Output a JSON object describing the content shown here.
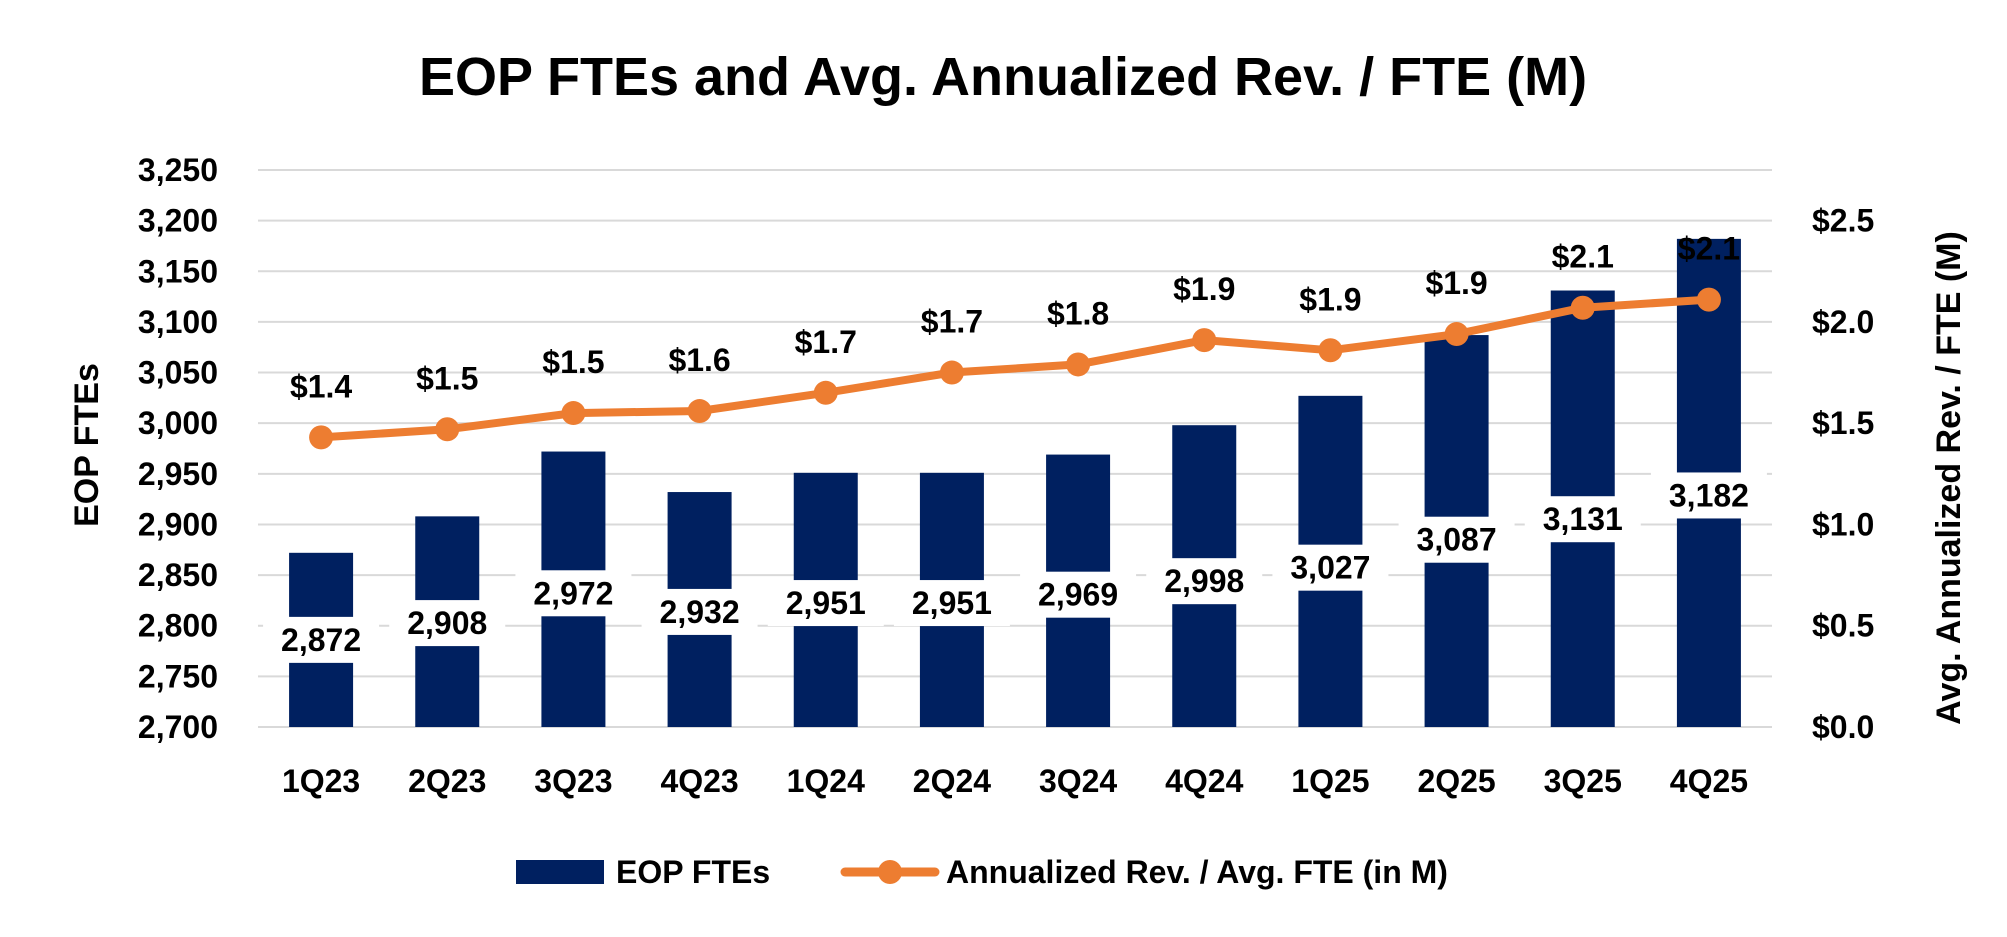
{
  "chart_data": {
    "type": "bar+line",
    "title": "EOP FTEs and Avg. Annualized Rev. / FTE (M)",
    "categories": [
      "1Q23",
      "2Q23",
      "3Q23",
      "4Q23",
      "1Q24",
      "2Q24",
      "3Q24",
      "4Q24",
      "1Q25",
      "2Q25",
      "3Q25",
      "4Q25"
    ],
    "series": [
      {
        "name": "EOP FTEs",
        "type": "bar",
        "axis": "left",
        "color": "#002060",
        "values": [
          2872,
          2908,
          2972,
          2932,
          2951,
          2951,
          2969,
          2998,
          3027,
          3087,
          3131,
          3182
        ],
        "labels": [
          "2,872",
          "2,908",
          "2,972",
          "2,932",
          "2,951",
          "2,951",
          "2,969",
          "2,998",
          "3,027",
          "3,087",
          "3,131",
          "3,182"
        ]
      },
      {
        "name": "Annualized Rev. / Avg. FTE (in M)",
        "type": "line",
        "axis": "right",
        "color": "#ED7D31",
        "values": [
          1.43,
          1.47,
          1.55,
          1.56,
          1.65,
          1.75,
          1.79,
          1.91,
          1.86,
          1.94,
          2.07,
          2.11
        ],
        "labels": [
          "$1.4",
          "$1.5",
          "$1.5",
          "$1.6",
          "$1.7",
          "$1.7",
          "$1.8",
          "$1.9",
          "$1.9",
          "$1.9",
          "$2.1",
          "$2.1"
        ]
      }
    ],
    "left_axis": {
      "label": "EOP FTEs",
      "min": 2700,
      "max": 3250,
      "step": 50,
      "ticks": [
        "2,700",
        "2,750",
        "2,800",
        "2,850",
        "2,900",
        "2,950",
        "3,000",
        "3,050",
        "3,100",
        "3,150",
        "3,200",
        "3,250"
      ]
    },
    "right_axis": {
      "label": "Avg. Annualized Rev. / FTE (M)",
      "min": 0,
      "max": 2.75,
      "ticks": [
        {
          "value": 0,
          "label": "$0.0"
        },
        {
          "value": 0.5,
          "label": "$0.5"
        },
        {
          "value": 1.0,
          "label": "$1.0"
        },
        {
          "value": 1.5,
          "label": "$1.5"
        },
        {
          "value": 2.0,
          "label": "$2.0"
        },
        {
          "value": 2.5,
          "label": "$2.5"
        }
      ]
    },
    "grid": true,
    "legend_position": "bottom"
  }
}
